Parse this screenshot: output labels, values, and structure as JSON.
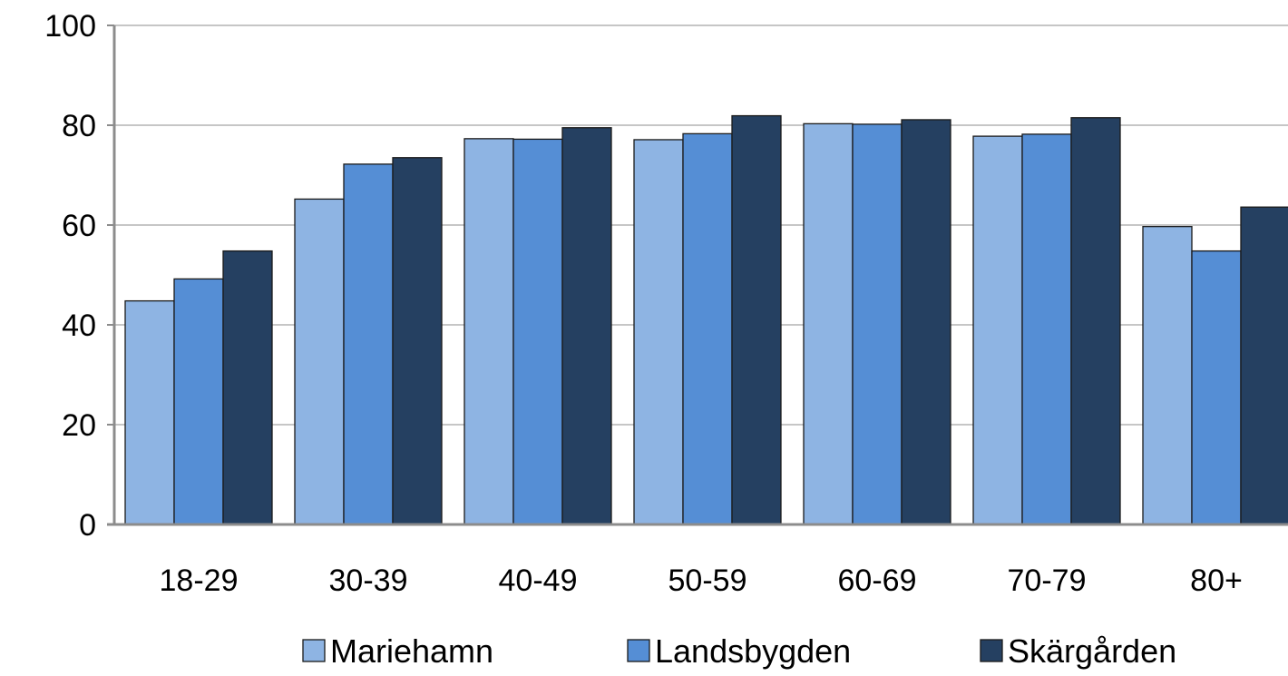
{
  "chart_data": {
    "type": "bar",
    "title": "",
    "xlabel": "",
    "ylabel": "",
    "categories": [
      "18-29",
      "30-39",
      "40-49",
      "50-59",
      "60-69",
      "70-79",
      "80+"
    ],
    "series": [
      {
        "name": "Mariehamn",
        "color": "#8EB4E3",
        "values": [
          44.8,
          65.2,
          77.3,
          77.1,
          80.3,
          77.8,
          59.7
        ]
      },
      {
        "name": "Landsbygden",
        "color": "#558ED5",
        "values": [
          49.2,
          72.2,
          77.2,
          78.3,
          80.2,
          78.2,
          54.8
        ]
      },
      {
        "name": "Skärgården",
        "color": "#254061",
        "values": [
          54.8,
          73.5,
          79.5,
          81.9,
          81.1,
          81.5,
          63.6
        ]
      }
    ],
    "ylim": [
      0,
      100
    ],
    "yticks": [
      "0",
      "20",
      "40",
      "60",
      "80",
      "100"
    ],
    "grid": true,
    "legend_position": "bottom"
  }
}
